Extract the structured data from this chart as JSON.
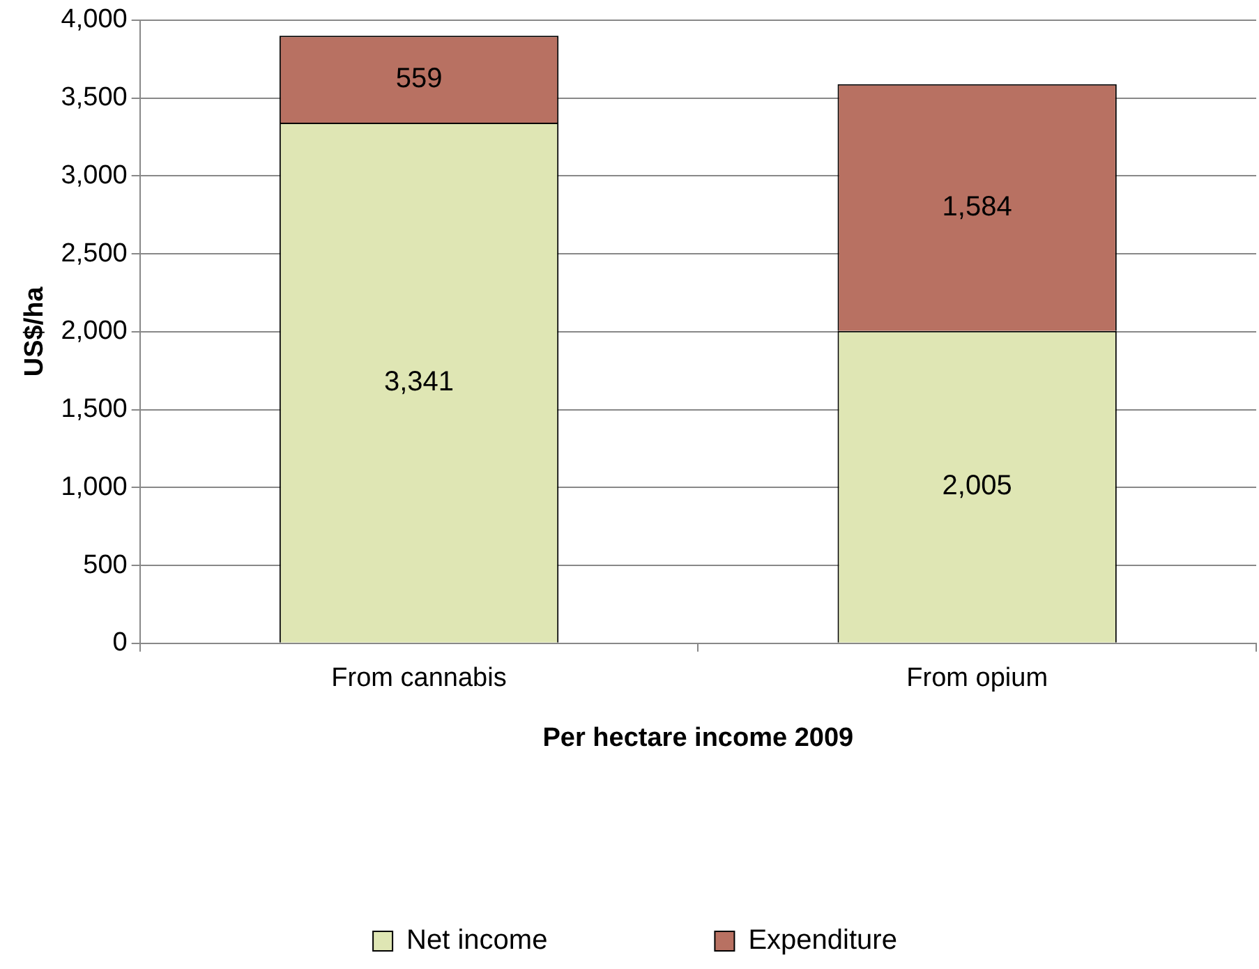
{
  "chart_data": {
    "type": "bar",
    "stacked": true,
    "xlabel": "Per hectare income 2009",
    "ylabel": "US$/ha",
    "categories": [
      "From cannabis",
      "From opium"
    ],
    "series": [
      {
        "name": "Net income",
        "color": "#dfe6b4",
        "values": [
          3341,
          2005
        ],
        "value_labels": [
          "3,341",
          "2,005"
        ]
      },
      {
        "name": "Expenditure",
        "color": "#b87162",
        "values": [
          559,
          1584
        ],
        "value_labels": [
          "559",
          "1,584"
        ]
      }
    ],
    "ylim": [
      0,
      4000
    ],
    "yticks": [
      0,
      500,
      {
        "value": 1000,
        "label": "1,000"
      },
      {
        "value": 1500,
        "label": "1,500"
      },
      {
        "value": 2000,
        "label": "2,000"
      },
      {
        "value": 2500,
        "label": "2,500"
      },
      {
        "value": 3000,
        "label": "3,000"
      },
      {
        "value": 3500,
        "label": "3,500"
      },
      {
        "value": 4000,
        "label": "4,000"
      }
    ],
    "grid": "y",
    "legend": "bottom"
  }
}
